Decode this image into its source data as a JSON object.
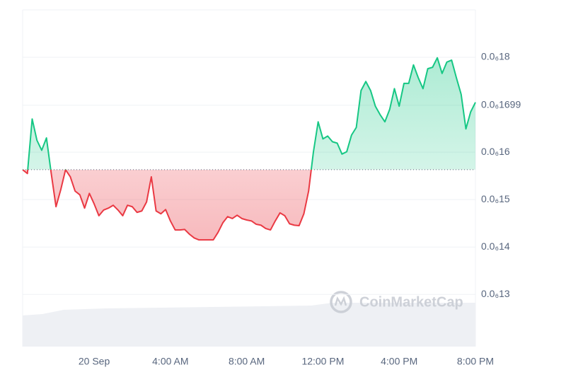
{
  "chart_data": {
    "type": "line",
    "watermark": "CoinMarketCap",
    "categories": [
      null,
      null,
      null,
      null,
      null,
      null,
      null,
      null,
      null,
      null,
      null,
      null,
      null,
      null,
      null,
      "20 Sep",
      null,
      null,
      null,
      null,
      null,
      null,
      null,
      null,
      null,
      null,
      null,
      null,
      null,
      null,
      null,
      "4:00 AM",
      null,
      null,
      null,
      null,
      null,
      null,
      null,
      null,
      null,
      null,
      null,
      null,
      null,
      null,
      null,
      "8:00 AM",
      null,
      null,
      null,
      null,
      null,
      null,
      null,
      null,
      null,
      null,
      null,
      null,
      null,
      null,
      null,
      "12:00 PM",
      null,
      null,
      null,
      null,
      null,
      null,
      null,
      null,
      null,
      null,
      null,
      null,
      null,
      null,
      null,
      "4:00 PM",
      null,
      null,
      null,
      null,
      null,
      null,
      null,
      null,
      null,
      null,
      null,
      null,
      null,
      null,
      null,
      "8:00 PM"
    ],
    "values": [
      1.563e-07,
      1.555e-07,
      1.67e-07,
      1.625e-07,
      1.604e-07,
      1.63e-07,
      1.555e-07,
      1.485e-07,
      1.521e-07,
      1.563e-07,
      1.548e-07,
      1.518e-07,
      1.51e-07,
      1.482e-07,
      1.513e-07,
      1.491e-07,
      1.466e-07,
      1.478e-07,
      1.482e-07,
      1.488e-07,
      1.478e-07,
      1.466e-07,
      1.488e-07,
      1.485e-07,
      1.473e-07,
      1.476e-07,
      1.495e-07,
      1.548e-07,
      1.476e-07,
      1.47e-07,
      1.479e-07,
      1.455e-07,
      1.436e-07,
      1.436e-07,
      1.437e-07,
      1.427e-07,
      1.419e-07,
      1.415e-07,
      1.415e-07,
      1.415e-07,
      1.415e-07,
      1.431e-07,
      1.451e-07,
      1.464e-07,
      1.46e-07,
      1.467e-07,
      1.46e-07,
      1.457e-07,
      1.455e-07,
      1.448e-07,
      1.446e-07,
      1.439e-07,
      1.436e-07,
      1.455e-07,
      1.472e-07,
      1.466e-07,
      1.449e-07,
      1.446e-07,
      1.445e-07,
      1.47e-07,
      1.518e-07,
      1.6e-07,
      1.664e-07,
      1.628e-07,
      1.634e-07,
      1.622e-07,
      1.619e-07,
      1.596e-07,
      1.601e-07,
      1.636e-07,
      1.652e-07,
      1.73e-07,
      1.749e-07,
      1.73e-07,
      1.697e-07,
      1.679e-07,
      1.664e-07,
      1.69e-07,
      1.734e-07,
      1.697e-07,
      1.745e-07,
      1.745e-07,
      1.784e-07,
      1.757e-07,
      1.734e-07,
      1.776e-07,
      1.779e-07,
      1.799e-07,
      1.766e-07,
      1.79e-07,
      1.794e-07,
      1.757e-07,
      1.722e-07,
      1.649e-07,
      1.685e-07,
      1.705e-07
    ],
    "baseline": 1.563e-07,
    "up_color": "#16c784",
    "down_color": "#ea3943",
    "ylim": [
      1.19e-07,
      1.9e-07
    ],
    "yticks": [
      {
        "value": 1.3e-07,
        "label": "0.0₆13"
      },
      {
        "value": 1.4e-07,
        "label": "0.0₆14"
      },
      {
        "value": 1.5e-07,
        "label": "0.0₆15"
      },
      {
        "value": 1.6e-07,
        "label": "0.0₆16"
      },
      {
        "value": 1.699e-07,
        "label": "0.0₆1699"
      },
      {
        "value": 1.8e-07,
        "label": "0.0₆18"
      }
    ],
    "grid": true
  }
}
